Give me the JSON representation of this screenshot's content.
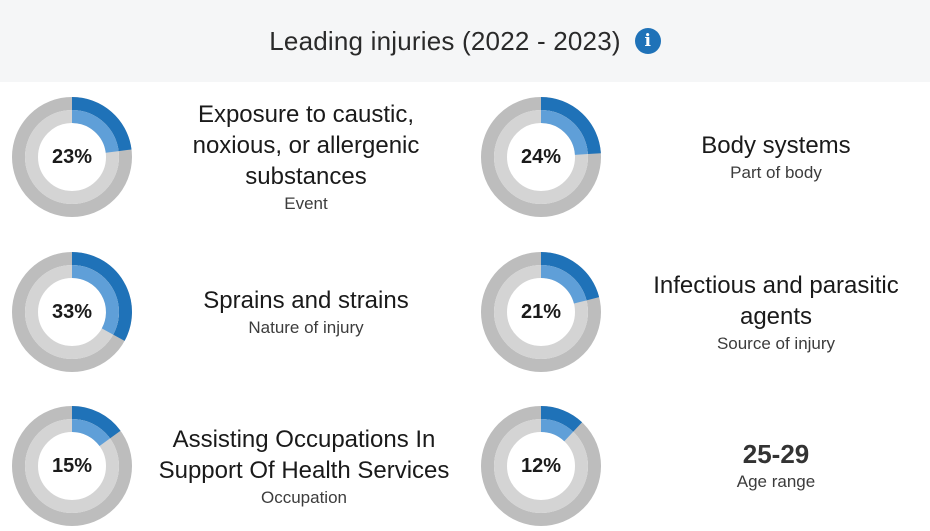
{
  "header": {
    "title": "Leading injuries (2022 - 2023)",
    "info_icon": "info-icon"
  },
  "colors": {
    "accent": "#1f72b8",
    "track_outer": "#bdbdbd",
    "track_inner": "#d4d4d4",
    "header_bg": "#f5f6f7"
  },
  "cards": [
    {
      "percent_label": "23%",
      "percent_value": 23,
      "label": "Exposure to caustic, noxious, or allergenic substances",
      "category": "Event"
    },
    {
      "percent_label": "24%",
      "percent_value": 24,
      "label": "Body systems",
      "category": "Part of body"
    },
    {
      "percent_label": "33%",
      "percent_value": 33,
      "label": "Sprains and strains",
      "category": "Nature of injury"
    },
    {
      "percent_label": "21%",
      "percent_value": 21,
      "label": "Infectious and parasitic agents",
      "category": "Source of injury"
    },
    {
      "percent_label": "15%",
      "percent_value": 15,
      "label": "Assisting Occupations In Support Of Health Services",
      "category": "Occupation"
    },
    {
      "percent_label": "12%",
      "percent_value": 12,
      "label": "25-29",
      "category": "Age range"
    }
  ]
}
